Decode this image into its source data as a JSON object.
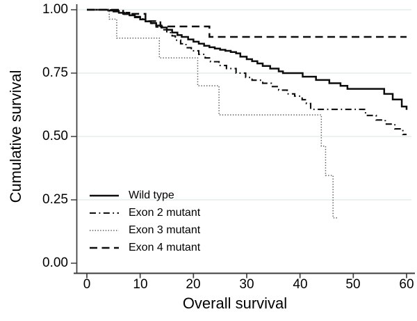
{
  "colors": {
    "background": "#ffffff",
    "axis": "#3c3c3c",
    "grid": "#e4eeec",
    "text": "#000000"
  },
  "chart_data": {
    "type": "line",
    "subtype": "kaplan-meier-step",
    "title": "",
    "xlabel": "Overall survival",
    "ylabel": "Cumulative survival",
    "xlim": [
      0,
      60
    ],
    "ylim": [
      0.0,
      1.0
    ],
    "grid": "horizontal-only",
    "legend_position": "inside-bottom-left",
    "xtick_values": [
      0,
      10,
      20,
      30,
      40,
      50,
      60
    ],
    "xtick_labels": [
      "0",
      "10",
      "20",
      "30",
      "40",
      "50",
      "60"
    ],
    "ytick_values": [
      1.0,
      0.75,
      0.5,
      0.25,
      0.0
    ],
    "ytick_labels": [
      "1.00",
      "0.75",
      "0.50",
      "0.25",
      "0.00"
    ],
    "series": [
      {
        "name": "Wild type",
        "line_style": "solid",
        "color": "#0d0d0d",
        "end_x": 60,
        "points": [
          [
            0,
            1.0
          ],
          [
            4,
            0.997
          ],
          [
            5,
            0.993
          ],
          [
            6,
            0.988
          ],
          [
            7,
            0.983
          ],
          [
            8,
            0.978
          ],
          [
            9,
            0.97
          ],
          [
            10,
            0.962
          ],
          [
            11,
            0.954
          ],
          [
            12,
            0.947
          ],
          [
            13,
            0.938
          ],
          [
            14,
            0.93
          ],
          [
            15,
            0.921
          ],
          [
            16,
            0.91
          ],
          [
            17,
            0.9
          ],
          [
            17.8,
            0.893
          ],
          [
            19,
            0.883
          ],
          [
            20,
            0.874
          ],
          [
            21,
            0.866
          ],
          [
            22,
            0.858
          ],
          [
            23,
            0.852
          ],
          [
            24,
            0.847
          ],
          [
            25,
            0.842
          ],
          [
            26,
            0.838
          ],
          [
            27,
            0.833
          ],
          [
            28,
            0.828
          ],
          [
            28.8,
            0.815
          ],
          [
            30,
            0.805
          ],
          [
            31,
            0.797
          ],
          [
            32,
            0.788
          ],
          [
            33,
            0.778
          ],
          [
            34.4,
            0.768
          ],
          [
            36,
            0.757
          ],
          [
            36.8,
            0.75
          ],
          [
            40.5,
            0.736
          ],
          [
            43,
            0.723
          ],
          [
            45.5,
            0.71
          ],
          [
            47.6,
            0.7
          ],
          [
            48.9,
            0.688
          ],
          [
            55.8,
            0.668
          ],
          [
            57.4,
            0.646
          ],
          [
            59.1,
            0.618
          ],
          [
            60,
            0.605
          ]
        ]
      },
      {
        "name": "Exon 2 mutant",
        "line_style": "dash-dot",
        "color": "#0d0d0d",
        "end_x": 60,
        "points": [
          [
            0,
            1.0
          ],
          [
            5,
            0.996
          ],
          [
            7,
            0.989
          ],
          [
            8,
            0.981
          ],
          [
            9,
            0.973
          ],
          [
            10,
            0.964
          ],
          [
            11,
            0.955
          ],
          [
            12,
            0.946
          ],
          [
            13,
            0.932
          ],
          [
            14,
            0.921
          ],
          [
            15,
            0.91
          ],
          [
            16,
            0.897
          ],
          [
            16.6,
            0.88
          ],
          [
            17.6,
            0.866
          ],
          [
            18.6,
            0.85
          ],
          [
            19.6,
            0.838
          ],
          [
            21,
            0.824
          ],
          [
            22.2,
            0.81
          ],
          [
            23.2,
            0.795
          ],
          [
            24.8,
            0.78
          ],
          [
            26.2,
            0.768
          ],
          [
            28,
            0.75
          ],
          [
            29.8,
            0.733
          ],
          [
            31,
            0.722
          ],
          [
            33,
            0.71
          ],
          [
            34.6,
            0.697
          ],
          [
            36,
            0.683
          ],
          [
            37.6,
            0.668
          ],
          [
            39,
            0.659
          ],
          [
            40.4,
            0.645
          ],
          [
            41.2,
            0.63
          ],
          [
            42,
            0.607
          ],
          [
            52.3,
            0.583
          ],
          [
            54.3,
            0.565
          ],
          [
            56,
            0.549
          ],
          [
            57.8,
            0.53
          ],
          [
            59.3,
            0.508
          ]
        ]
      },
      {
        "name": "Exon 3 mutant",
        "line_style": "dotted",
        "color": "#5a5a5a",
        "end_x": 47,
        "points": [
          [
            0,
            1.0
          ],
          [
            4.2,
            0.963
          ],
          [
            5.6,
            0.888
          ],
          [
            13.6,
            0.81
          ],
          [
            20.8,
            0.7
          ],
          [
            24.8,
            0.585
          ],
          [
            44,
            0.462
          ],
          [
            44.8,
            0.346
          ],
          [
            46.2,
            0.179
          ]
        ]
      },
      {
        "name": "Exon 4 mutant",
        "line_style": "dashed",
        "color": "#0d0d0d",
        "end_x": 60,
        "points": [
          [
            0,
            1.0
          ],
          [
            6.8,
            0.984
          ],
          [
            11,
            0.955
          ],
          [
            13.8,
            0.934
          ],
          [
            23,
            0.893
          ]
        ]
      }
    ]
  }
}
